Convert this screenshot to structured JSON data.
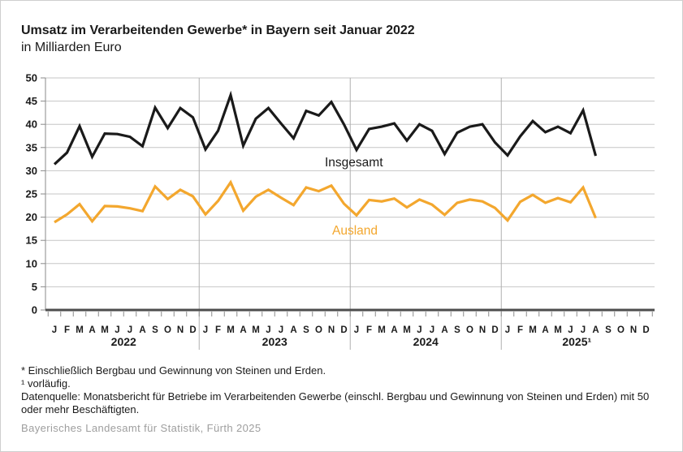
{
  "header": {
    "title": "Umsatz im Verarbeitenden Gewerbe* in Bayern seit Januar 2022",
    "subtitle": "in Milliarden Euro"
  },
  "chart_data": {
    "type": "line",
    "title": "Umsatz im Verarbeitenden Gewerbe* in Bayern seit Januar 2022",
    "subtitle": "in Milliarden Euro",
    "ylabel": "Milliarden Euro",
    "ylim": [
      0,
      50
    ],
    "ytick_step": 5,
    "grid": true,
    "legend_style": "inline-labels",
    "month_letters": [
      "J",
      "F",
      "M",
      "A",
      "M",
      "J",
      "J",
      "A",
      "S",
      "O",
      "N",
      "D"
    ],
    "years": [
      "2022",
      "2023",
      "2024",
      "2025¹"
    ],
    "x_range": "Jan 2022 – Aug 2025",
    "series": [
      {
        "name": "Insgesamt",
        "color": "#1a1a1a",
        "values": [
          31.4,
          33.9,
          39.6,
          33.0,
          38.0,
          37.9,
          37.3,
          35.3,
          43.6,
          39.2,
          43.5,
          41.5,
          34.6,
          38.6,
          46.3,
          35.4,
          41.2,
          43.5,
          40.2,
          37.0,
          42.9,
          41.9,
          44.8,
          40.0,
          34.5,
          39.0,
          39.5,
          40.2,
          36.5,
          40.0,
          38.6,
          33.6,
          38.2,
          39.5,
          40.0,
          36.1,
          33.3,
          37.4,
          40.7,
          38.3,
          39.5,
          38.1,
          43.0,
          33.2
        ]
      },
      {
        "name": "Ausland",
        "color": "#F3A72E",
        "values": [
          18.9,
          20.6,
          22.8,
          19.1,
          22.4,
          22.3,
          21.9,
          21.3,
          26.6,
          23.9,
          25.9,
          24.5,
          20.6,
          23.5,
          27.5,
          21.4,
          24.4,
          25.9,
          24.2,
          22.6,
          26.4,
          25.6,
          26.8,
          22.9,
          20.4,
          23.7,
          23.4,
          24.0,
          22.1,
          23.8,
          22.7,
          20.5,
          23.1,
          23.8,
          23.4,
          22.0,
          19.3,
          23.3,
          24.8,
          23.1,
          24.1,
          23.2,
          26.4,
          19.8
        ]
      }
    ]
  },
  "footnotes": {
    "line1": "* Einschließlich Bergbau und Gewinnung von Steinen und Erden.",
    "line2": "¹ vorläufig.",
    "line3": "Datenquelle: Monatsbericht für Betriebe im Verarbeitenden Gewerbe (einschl. Bergbau und Gewinnung von Steinen und Erden) mit 50 oder mehr Beschäftigten."
  },
  "credit": "Bayerisches Landesamt für Statistik, Fürth 2025",
  "colors": {
    "line_total": "#1a1a1a",
    "line_foreign": "#F3A72E",
    "grid": "#c6c6c6",
    "year_separator": "#b0b0b0",
    "axis": "#4d4d4d",
    "credit_gray": "#9e9e9e"
  }
}
